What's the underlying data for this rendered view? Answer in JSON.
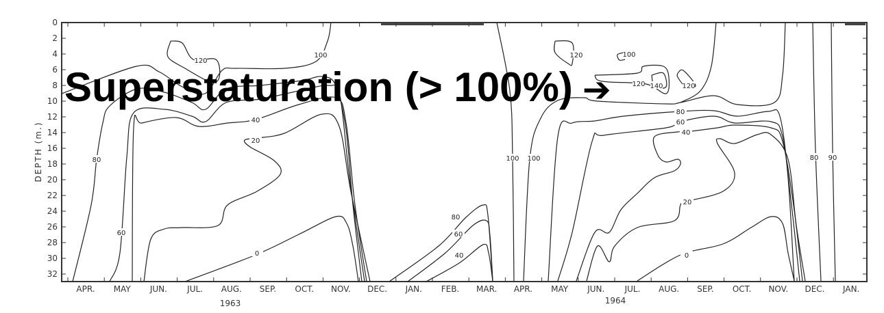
{
  "chart_data": {
    "type": "contour",
    "title": "",
    "ylabel": "DEPTH (m.)",
    "ylim": [
      0,
      33
    ],
    "y_inverted": true,
    "y_ticks": [
      "0",
      "2",
      "4",
      "6",
      "8",
      "10",
      "12",
      "14",
      "16",
      "18",
      "20",
      "22",
      "24",
      "26",
      "28",
      "30",
      "32"
    ],
    "x_ticks": [
      "APR.",
      "MAY",
      "JUN.",
      "JUL.",
      "AUG.",
      "SEP.",
      "OCT.",
      "NOV.",
      "DEC.",
      "JAN.",
      "FEB.",
      "MAR.",
      "APR.",
      "MAY",
      "JUN.",
      "JUL.",
      "AUG.",
      "SEP.",
      "OCT.",
      "NOV.",
      "DEC.",
      "JAN."
    ],
    "year_labels": [
      "1963",
      "1964"
    ],
    "grid": false,
    "line_color": "#222222",
    "contours": [
      {
        "level": "100"
      },
      {
        "level": "120"
      },
      {
        "level": "80"
      },
      {
        "level": "60"
      },
      {
        "level": "40"
      },
      {
        "level": "20"
      },
      {
        "level": "0"
      },
      {
        "level": "80"
      },
      {
        "level": "60"
      },
      {
        "level": "40"
      },
      {
        "level": "100"
      },
      {
        "level": "100"
      },
      {
        "level": "80"
      },
      {
        "level": "60"
      },
      {
        "level": "40"
      },
      {
        "level": "20"
      },
      {
        "level": "0"
      },
      {
        "level": "120"
      },
      {
        "level": "100"
      },
      {
        "level": "120"
      },
      {
        "level": "140"
      },
      {
        "level": "120"
      },
      {
        "level": "80"
      },
      {
        "level": "90"
      },
      {
        "level": "100"
      }
    ]
  },
  "annotation": {
    "text": "Superstaturation (> 100%)",
    "arrow": "➔"
  }
}
